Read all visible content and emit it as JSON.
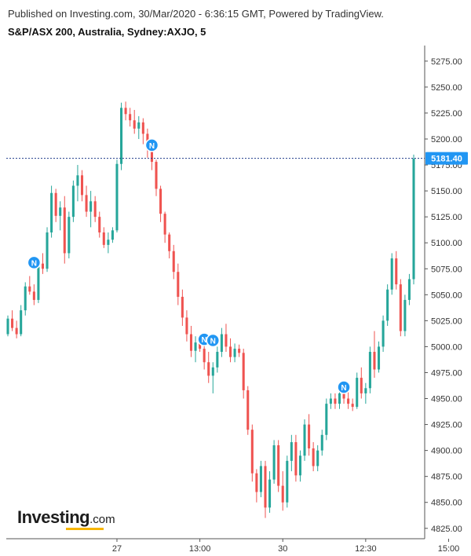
{
  "header": {
    "published": "Published on Investing.com, 30/Mar/2020 - 6:36:15 GMT, Powered by TradingView.",
    "title": "S&P/ASX 200, Australia, Sydney:AXJO, 5"
  },
  "branding": {
    "logo_main": "Investing",
    "logo_suffix": ".com"
  },
  "colors": {
    "up": "#26a69a",
    "down": "#ef5350",
    "news_marker": "#2196f3",
    "price_line": "#1e3a8a",
    "price_badge": "#2196f3"
  },
  "current_price": {
    "value": 5181.4,
    "label": "5181.40"
  },
  "chart_data": {
    "type": "candlestick",
    "title": "S&P/ASX 200, Australia, Sydney:AXJO, 5",
    "ylim": [
      4815,
      5290
    ],
    "y_ticks": [
      4825,
      4850,
      4875,
      4900,
      4925,
      4950,
      4975,
      5000,
      5025,
      5050,
      5075,
      5100,
      5125,
      5150,
      5175,
      5200,
      5225,
      5250,
      5275
    ],
    "x_tick_labels": [
      {
        "label": "27",
        "bar": 25
      },
      {
        "label": "13:00",
        "bar": 44
      },
      {
        "label": "30",
        "bar": 63
      },
      {
        "label": "12:30",
        "bar": 82
      },
      {
        "label": "15:00",
        "bar": 101
      }
    ],
    "news_markers": [
      {
        "label": "N",
        "bar": 6,
        "price": 5081
      },
      {
        "label": "N",
        "bar": 33,
        "price": 5194
      },
      {
        "label": "N",
        "bar": 45,
        "price": 5007
      },
      {
        "label": "N",
        "bar": 47,
        "price": 5006
      },
      {
        "label": "N",
        "bar": 77,
        "price": 4961
      }
    ],
    "ohlc": [
      [
        5012,
        5030,
        5010,
        5027
      ],
      [
        5027,
        5035,
        5015,
        5018
      ],
      [
        5018,
        5025,
        5008,
        5012
      ],
      [
        5012,
        5040,
        5010,
        5035
      ],
      [
        5035,
        5062,
        5030,
        5058
      ],
      [
        5058,
        5068,
        5050,
        5053
      ],
      [
        5053,
        5060,
        5040,
        5045
      ],
      [
        5045,
        5085,
        5042,
        5080
      ],
      [
        5080,
        5090,
        5070,
        5075
      ],
      [
        5075,
        5115,
        5072,
        5110
      ],
      [
        5110,
        5155,
        5105,
        5148
      ],
      [
        5148,
        5152,
        5120,
        5126
      ],
      [
        5126,
        5140,
        5112,
        5134
      ],
      [
        5134,
        5145,
        5080,
        5090
      ],
      [
        5090,
        5130,
        5085,
        5125
      ],
      [
        5125,
        5160,
        5120,
        5155
      ],
      [
        5155,
        5175,
        5140,
        5165
      ],
      [
        5165,
        5170,
        5140,
        5146
      ],
      [
        5146,
        5155,
        5125,
        5130
      ],
      [
        5130,
        5150,
        5115,
        5140
      ],
      [
        5140,
        5145,
        5120,
        5125
      ],
      [
        5125,
        5130,
        5105,
        5110
      ],
      [
        5110,
        5115,
        5095,
        5098
      ],
      [
        5098,
        5110,
        5090,
        5103
      ],
      [
        5103,
        5115,
        5100,
        5112
      ],
      [
        5112,
        5180,
        5110,
        5176
      ],
      [
        5176,
        5235,
        5170,
        5230
      ],
      [
        5230,
        5236,
        5218,
        5224
      ],
      [
        5224,
        5230,
        5212,
        5218
      ],
      [
        5218,
        5228,
        5205,
        5210
      ],
      [
        5210,
        5222,
        5200,
        5216
      ],
      [
        5216,
        5220,
        5195,
        5205
      ],
      [
        5205,
        5210,
        5182,
        5190
      ],
      [
        5190,
        5195,
        5170,
        5178
      ],
      [
        5178,
        5180,
        5145,
        5152
      ],
      [
        5152,
        5155,
        5120,
        5128
      ],
      [
        5128,
        5130,
        5100,
        5108
      ],
      [
        5108,
        5110,
        5085,
        5092
      ],
      [
        5092,
        5098,
        5065,
        5072
      ],
      [
        5072,
        5080,
        5040,
        5048
      ],
      [
        5048,
        5055,
        5020,
        5028
      ],
      [
        5028,
        5035,
        5005,
        5012
      ],
      [
        5012,
        5020,
        4990,
        4996
      ],
      [
        4996,
        5010,
        4985,
        5004
      ],
      [
        5004,
        5010,
        4995,
        4998
      ],
      [
        4998,
        5005,
        4978,
        4985
      ],
      [
        4985,
        4995,
        4965,
        4972
      ],
      [
        4972,
        4985,
        4955,
        4980
      ],
      [
        4980,
        5000,
        4975,
        4995
      ],
      [
        4995,
        5018,
        4990,
        5012
      ],
      [
        5012,
        5022,
        4995,
        5000
      ],
      [
        5000,
        5008,
        4985,
        4990
      ],
      [
        4990,
        5003,
        4985,
        4998
      ],
      [
        4998,
        5002,
        4990,
        4994
      ],
      [
        4994,
        4998,
        4950,
        4958
      ],
      [
        4958,
        4962,
        4915,
        4920
      ],
      [
        4920,
        4925,
        4870,
        4878
      ],
      [
        4878,
        4882,
        4850,
        4860
      ],
      [
        4860,
        4890,
        4855,
        4885
      ],
      [
        4885,
        4890,
        4835,
        4845
      ],
      [
        4845,
        4880,
        4840,
        4872
      ],
      [
        4872,
        4910,
        4868,
        4905
      ],
      [
        4905,
        4910,
        4860,
        4866
      ],
      [
        4866,
        4880,
        4842,
        4850
      ],
      [
        4850,
        4895,
        4845,
        4890
      ],
      [
        4890,
        4915,
        4880,
        4908
      ],
      [
        4908,
        4915,
        4870,
        4876
      ],
      [
        4876,
        4900,
        4870,
        4895
      ],
      [
        4895,
        4930,
        4890,
        4925
      ],
      [
        4925,
        4935,
        4895,
        4902
      ],
      [
        4902,
        4908,
        4880,
        4885
      ],
      [
        4885,
        4905,
        4880,
        4900
      ],
      [
        4900,
        4920,
        4895,
        4915
      ],
      [
        4915,
        4950,
        4910,
        4945
      ],
      [
        4945,
        4955,
        4940,
        4950
      ],
      [
        4950,
        4955,
        4940,
        4945
      ],
      [
        4945,
        4960,
        4940,
        4955
      ],
      [
        4955,
        4962,
        4945,
        4950
      ],
      [
        4950,
        4958,
        4940,
        4945
      ],
      [
        4945,
        4950,
        4938,
        4942
      ],
      [
        4942,
        4975,
        4940,
        4970
      ],
      [
        4970,
        4980,
        4950,
        4955
      ],
      [
        4955,
        4965,
        4945,
        4960
      ],
      [
        4960,
        5000,
        4955,
        4995
      ],
      [
        4995,
        5015,
        4970,
        4978
      ],
      [
        4978,
        5005,
        4975,
        5000
      ],
      [
        5000,
        5030,
        4995,
        5025
      ],
      [
        5025,
        5060,
        5020,
        5055
      ],
      [
        5055,
        5090,
        5050,
        5085
      ],
      [
        5085,
        5092,
        5055,
        5060
      ],
      [
        5060,
        5065,
        5010,
        5015
      ],
      [
        5015,
        5050,
        5010,
        5045
      ],
      [
        5045,
        5070,
        5040,
        5065
      ],
      [
        5065,
        5185,
        5060,
        5181
      ]
    ]
  }
}
